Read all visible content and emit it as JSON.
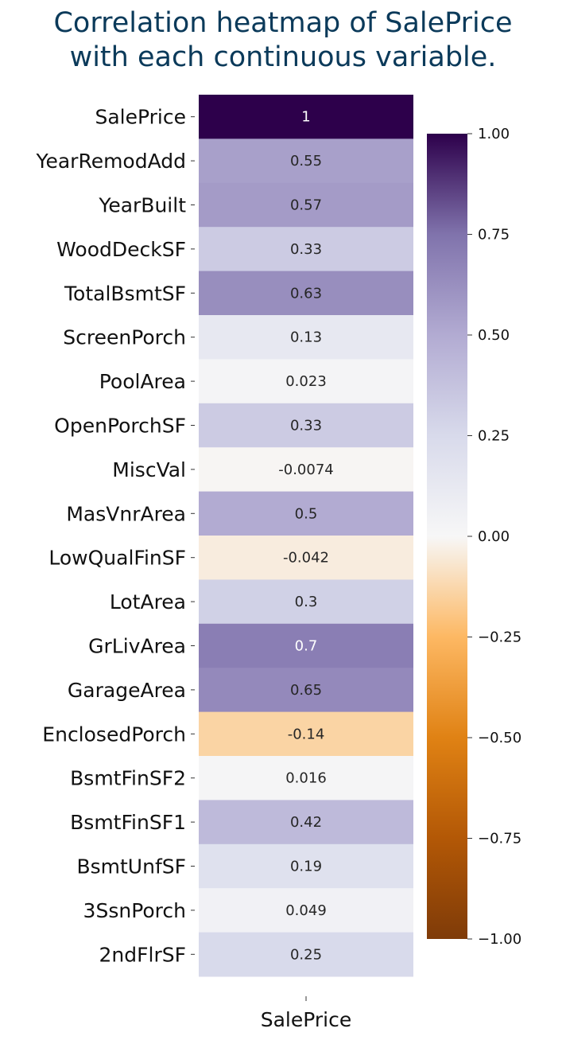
{
  "chart_data": {
    "type": "heatmap",
    "title": "Correlation heatmap of SalePrice\nwith each continuous variable.",
    "columns": [
      "SalePrice"
    ],
    "rows": [
      "SalePrice",
      "YearRemodAdd",
      "YearBuilt",
      "WoodDeckSF",
      "TotalBsmtSF",
      "ScreenPorch",
      "PoolArea",
      "OpenPorchSF",
      "MiscVal",
      "MasVnrArea",
      "LowQualFinSF",
      "LotArea",
      "GrLivArea",
      "GarageArea",
      "EnclosedPorch",
      "BsmtFinSF2",
      "BsmtFinSF1",
      "BsmtUnfSF",
      "3SsnPorch",
      "2ndFlrSF"
    ],
    "values": [
      1,
      0.55,
      0.57,
      0.33,
      0.63,
      0.13,
      0.023,
      0.33,
      -0.0074,
      0.5,
      -0.042,
      0.3,
      0.7,
      0.65,
      -0.14,
      0.016,
      0.42,
      0.19,
      0.049,
      0.25
    ],
    "annotations": [
      "1",
      "0.55",
      "0.57",
      "0.33",
      "0.63",
      "0.13",
      "0.023",
      "0.33",
      "-0.0074",
      "0.5",
      "-0.042",
      "0.3",
      "0.7",
      "0.65",
      "-0.14",
      "0.016",
      "0.42",
      "0.19",
      "0.049",
      "0.25"
    ],
    "colormap": "PuOr",
    "vmin": -1,
    "vmax": 1,
    "colorbar_ticks": [
      "1.00",
      "0.75",
      "0.50",
      "0.25",
      "0.00",
      "−0.25",
      "−0.50",
      "−0.75",
      "−1.00"
    ],
    "colorbar_tick_values": [
      1,
      0.75,
      0.5,
      0.25,
      0,
      -0.25,
      -0.5,
      -0.75,
      -1
    ],
    "colors": {
      "title": "#0b3a5a",
      "stops": [
        [
          -1.0,
          "#7f3b08"
        ],
        [
          -0.75,
          "#b35806"
        ],
        [
          -0.5,
          "#e08214"
        ],
        [
          -0.25,
          "#fdb863"
        ],
        [
          0.0,
          "#f7f7f7"
        ],
        [
          0.25,
          "#d8daeb"
        ],
        [
          0.5,
          "#b2abd2"
        ],
        [
          0.75,
          "#8073ac"
        ],
        [
          1.0,
          "#2d004b"
        ]
      ]
    }
  }
}
